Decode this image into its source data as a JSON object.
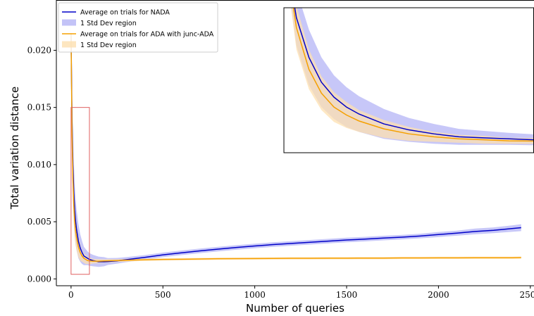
{
  "chart_data": {
    "type": "line",
    "title": "",
    "xlabel": "Number of queries",
    "ylabel": "Total variation distance",
    "xlim": [
      -80,
      2520
    ],
    "ylim": [
      -0.0006,
      0.0244
    ],
    "xticks": [
      0,
      500,
      1000,
      1500,
      2000,
      2500
    ],
    "xtick_labels": [
      "0",
      "500",
      "1000",
      "1500",
      "2000",
      "2500"
    ],
    "yticks": [
      0.0,
      0.005,
      0.01,
      0.015,
      0.02
    ],
    "ytick_labels": [
      "0.000",
      "0.005",
      "0.010",
      "0.015",
      "0.020"
    ],
    "grid": false,
    "legend_position": "top-left",
    "legend": [
      {
        "label": "Average on trials for NADA",
        "kind": "line",
        "color": "#0000c8"
      },
      {
        "label": "1 Std Dev region",
        "kind": "band",
        "color": "#b4b4f5"
      },
      {
        "label": "Average on trials for ADA with junc-ADA",
        "kind": "line",
        "color": "#f5a000"
      },
      {
        "label": "1 Std Dev region",
        "kind": "band",
        "color": "#fde0b0"
      }
    ],
    "series": [
      {
        "name": "Average on trials for NADA",
        "color": "#0000c8",
        "band_color": "#b4b4f5",
        "x": [
          0,
          5,
          10,
          15,
          20,
          25,
          30,
          40,
          50,
          60,
          70,
          80,
          90,
          100,
          120,
          150,
          180,
          200,
          250,
          300,
          400,
          500,
          600,
          700,
          800,
          900,
          1000,
          1100,
          1200,
          1300,
          1400,
          1500,
          1600,
          1700,
          1800,
          1900,
          2000,
          2100,
          2200,
          2300,
          2400,
          2450
        ],
        "y": [
          0.0215,
          0.014,
          0.01,
          0.0075,
          0.006,
          0.005,
          0.0043,
          0.0033,
          0.0027,
          0.0023,
          0.002,
          0.0019,
          0.0018,
          0.0017,
          0.0016,
          0.0015,
          0.0015,
          0.00152,
          0.00158,
          0.00168,
          0.00188,
          0.0021,
          0.00228,
          0.00245,
          0.0026,
          0.00275,
          0.00288,
          0.003,
          0.0031,
          0.0032,
          0.0033,
          0.0034,
          0.00348,
          0.00357,
          0.00365,
          0.00375,
          0.00388,
          0.004,
          0.00415,
          0.00425,
          0.0044,
          0.00448
        ],
        "std": [
          0.001,
          0.0028,
          0.0028,
          0.0025,
          0.0022,
          0.002,
          0.0018,
          0.0015,
          0.0012,
          0.001,
          0.0008,
          0.0007,
          0.0006,
          0.00055,
          0.0005,
          0.00045,
          0.0004,
          0.0003,
          0.00025,
          0.00022,
          0.0002,
          0.0002,
          0.0002,
          0.0002,
          0.0002,
          0.0002,
          0.0002,
          0.0002,
          0.0002,
          0.0002,
          0.0002,
          0.0002,
          0.0002,
          0.0002,
          0.0002,
          0.0002,
          0.00022,
          0.00022,
          0.00025,
          0.00025,
          0.00028,
          0.0003
        ]
      },
      {
        "name": "Average on trials for ADA with junc-ADA",
        "color": "#f5a000",
        "band_color": "#fde0b0",
        "x": [
          0,
          5,
          10,
          15,
          20,
          25,
          30,
          40,
          50,
          60,
          70,
          80,
          90,
          100,
          120,
          150,
          180,
          200,
          250,
          300,
          400,
          500,
          600,
          700,
          800,
          900,
          1000,
          1100,
          1200,
          1300,
          1400,
          1500,
          1600,
          1700,
          1800,
          1900,
          2000,
          2100,
          2200,
          2300,
          2400,
          2450
        ],
        "y": [
          0.0215,
          0.013,
          0.0088,
          0.0064,
          0.005,
          0.0042,
          0.0036,
          0.0028,
          0.0023,
          0.002,
          0.0018,
          0.0017,
          0.0016,
          0.00158,
          0.00155,
          0.00155,
          0.00157,
          0.00158,
          0.0016,
          0.00163,
          0.00167,
          0.0017,
          0.00172,
          0.00174,
          0.00176,
          0.00177,
          0.00178,
          0.00179,
          0.0018,
          0.0018,
          0.00181,
          0.00181,
          0.00182,
          0.00182,
          0.00183,
          0.00183,
          0.00184,
          0.00184,
          0.00185,
          0.00185,
          0.00185,
          0.00186
        ],
        "std": [
          0.001,
          0.0022,
          0.002,
          0.0017,
          0.0015,
          0.0013,
          0.0011,
          0.0009,
          0.0007,
          0.0005,
          0.0004,
          0.0004,
          0.0003,
          0.0003,
          0.0002,
          0.00018,
          0.00015,
          0.00015,
          0.00012,
          0.00012,
          0.0001,
          0.0001,
          0.0001,
          0.0001,
          0.0001,
          0.0001,
          0.0001,
          0.0001,
          0.0001,
          0.0001,
          0.0001,
          0.0001,
          0.0001,
          0.0001,
          0.0001,
          0.0001,
          0.0001,
          0.0001,
          0.0001,
          0.0001,
          0.0001,
          0.0001
        ]
      }
    ],
    "zoom_region": {
      "x": [
        0,
        100
      ],
      "y": [
        0.0004,
        0.015
      ],
      "color": "#e06060"
    },
    "inset_color": "#000000"
  }
}
